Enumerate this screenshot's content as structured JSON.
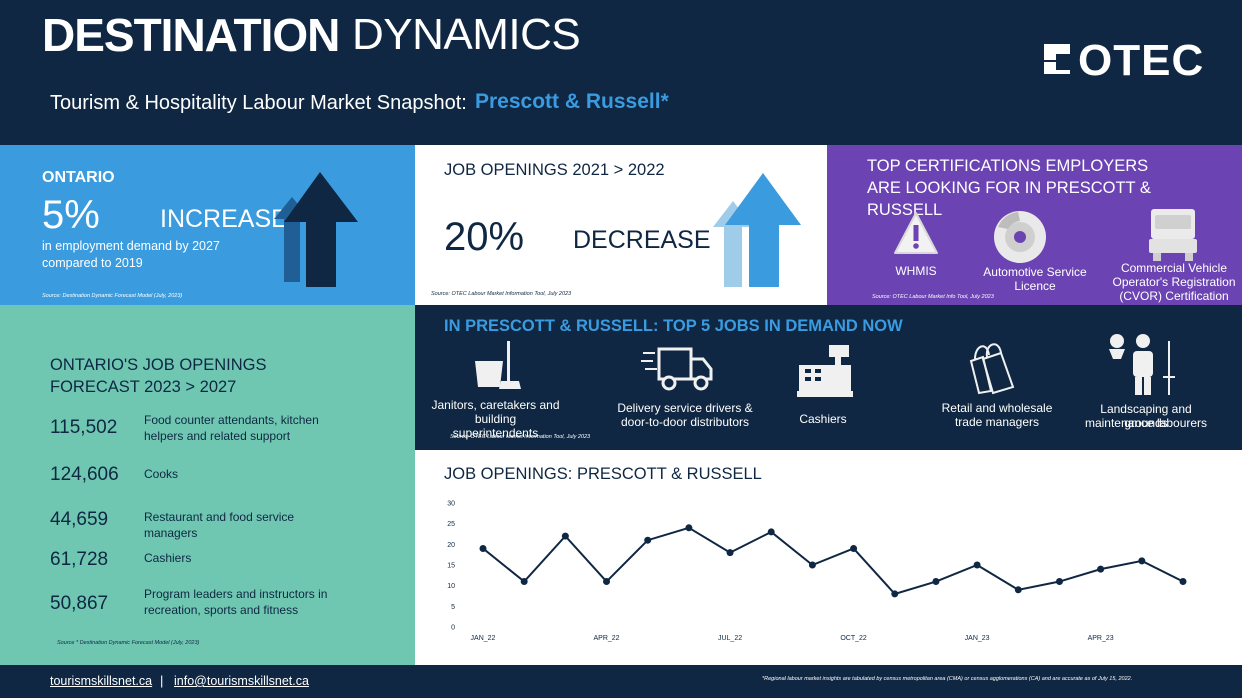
{
  "header": {
    "title_bold": "DESTINATION",
    "title_light": "DYNAMICS",
    "subtitle": "Tourism & Hospitality Labour Market Snapshot:",
    "region": "Prescott & Russell*",
    "logo": "OTEC"
  },
  "ontario": {
    "heading": "ONTARIO",
    "pct": "5%",
    "change": "INCREASE",
    "desc1": "in employment demand by 2027",
    "desc2": "compared to 2019",
    "source": "Source: Destination Dynamic Forecast Model (July, 2023)",
    "colors": {
      "bg": "#3a9bde",
      "arrow_dark": "#0f2742",
      "arrow_mid": "#1f5f95"
    }
  },
  "job_openings_change": {
    "heading": "JOB OPENINGS 2021 > 2022",
    "pct": "20%",
    "change": "DECREASE",
    "source": "Source: OTEC Labour Market Information Tool, July 2023",
    "colors": {
      "arrow_light": "#9fcde9",
      "arrow_main": "#3a9bde"
    }
  },
  "certifications": {
    "heading1": "TOP CERTIFICATIONS EMPLOYERS",
    "heading2": "ARE LOOKING FOR IN PRESCOTT &",
    "heading3": "RUSSELL",
    "items": [
      {
        "icon": "warning-icon",
        "label1": "WHMIS",
        "label2": "",
        "label3": ""
      },
      {
        "icon": "brake-disc-icon",
        "label1": "Automotive Service",
        "label2": "Licence",
        "label3": ""
      },
      {
        "icon": "truck-icon",
        "label1": "Commercial Vehicle",
        "label2": "Operator's Registration",
        "label3": "(CVOR) Certification"
      }
    ],
    "source": "Source: OTEC Labour Market Info Tool, July 2023",
    "colors": {
      "bg": "#6b43b3"
    }
  },
  "forecast": {
    "heading1": "ONTARIO'S JOB OPENINGS",
    "heading2": "FORECAST 2023 > 2027",
    "rows": [
      {
        "value": "115,502",
        "line1": "Food counter attendants, kitchen",
        "line2": "helpers and related support"
      },
      {
        "value": "124,606",
        "line1": "Cooks",
        "line2": ""
      },
      {
        "value": "44,659",
        "line1": "Restaurant and food service",
        "line2": "managers"
      },
      {
        "value": "61,728",
        "line1": "Cashiers",
        "line2": ""
      },
      {
        "value": "50,867",
        "line1": "Program leaders and instructors in",
        "line2": "recreation, sports and fitness"
      }
    ],
    "source": "Source * Destination Dynamic Forecast Model (July, 2023)",
    "colors": {
      "bg": "#6fc7b2"
    }
  },
  "top_jobs": {
    "heading": "IN PRESCOTT & RUSSELL: TOP 5 JOBS IN DEMAND NOW",
    "items": [
      {
        "icon": "cleaning-bucket-icon",
        "line1": "Janitors, caretakers and",
        "line2": "building",
        "line3": "superintendents"
      },
      {
        "icon": "delivery-truck-icon",
        "line1": "Delivery service drivers &",
        "line2": "door-to-door distributors",
        "line3": ""
      },
      {
        "icon": "cash-register-icon",
        "line1": "Cashiers",
        "line2": "",
        "line3": ""
      },
      {
        "icon": "shopping-bags-icon",
        "line1": "Retail and wholesale",
        "line2": "trade managers",
        "line3": ""
      },
      {
        "icon": "gardener-icon",
        "line1": "Landscaping and grounds",
        "line2": "maintenance labourers",
        "line3": ""
      }
    ],
    "source": "Source: OTEC Labour Market Information Tool, July 2023"
  },
  "chart_data": {
    "type": "line",
    "title": "JOB OPENINGS: PRESCOTT & RUSSELL",
    "x": [
      "JAN_22",
      "FEB_22",
      "MAR_22",
      "APR_22",
      "MAY_22",
      "JUN_22",
      "JUL_22",
      "AUG_22",
      "SEP_22",
      "OCT_22",
      "NOV_22",
      "DEC_22",
      "JAN_23",
      "FEB_23",
      "MAR_23",
      "APR_23",
      "MAY_23",
      "JUN_23"
    ],
    "x_tick_labels": [
      "JAN_22",
      "APR_22",
      "JUL_22",
      "OCT_22",
      "JAN_23",
      "APR_23"
    ],
    "values": [
      19,
      11,
      22,
      11,
      21,
      24,
      18,
      23,
      15,
      19,
      8,
      11,
      15,
      9,
      11,
      14,
      16,
      11
    ],
    "y_ticks": [
      "30",
      "25",
      "20",
      "15",
      "10",
      "5",
      "0"
    ],
    "ylim": [
      0,
      30
    ],
    "grid": false,
    "color": "#0f2742"
  },
  "footer": {
    "site": "tourismskillsnet.ca",
    "sep": "|",
    "email": "info@tourismskillsnet.ca",
    "note": "*Regional labour market insights are tabulated by census metropolitan area (CMA) or census agglomerations (CA) and are accurate as of July 15, 2022."
  }
}
